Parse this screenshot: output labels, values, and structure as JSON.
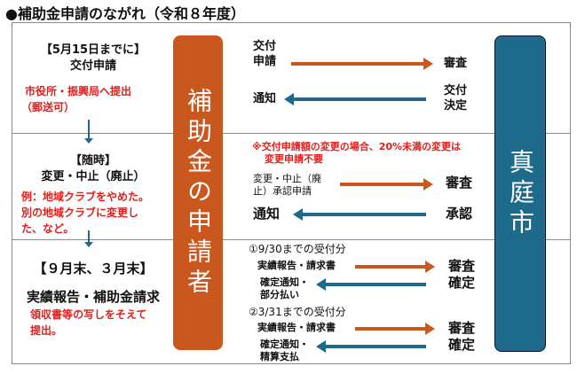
{
  "title": "●補助金申請のながれ（令和８年度）",
  "applicant": "補助金の申請者",
  "city": "真庭市",
  "colors": {
    "applicant": "#c9571e",
    "city": "#1e6a8a",
    "note": "#e0201c"
  },
  "rows": [
    {
      "heading": "【5月15日までに】",
      "subheading": "交付申請",
      "note": [
        "市役所・振興局へ提出",
        "（郵送可）"
      ],
      "flows": [
        {
          "from": "交付\n申請",
          "to": "審査",
          "dir": "right"
        },
        {
          "from": "通知",
          "to": "交付\n決定",
          "dir": "left"
        }
      ]
    },
    {
      "heading": "【随時】",
      "subheading": "変更・中止（廃止）",
      "note": [
        "例：地域クラブをやめた。",
        "別の地域クラブに変更し",
        "た、など。"
      ],
      "remark": [
        "※交付申請額の変更の場合、20%未満の変更は",
        "変更申請不要"
      ],
      "flows": [
        {
          "from": "変更・中止（廃\n止）承認申請",
          "to": "審査",
          "dir": "right"
        },
        {
          "from": "通知",
          "to": "承認",
          "dir": "left"
        }
      ]
    },
    {
      "heading": "【９月末、３月末】",
      "subheading": "実績報告・補助金請求",
      "note": [
        "領収書等の写しをそえて",
        "提出。"
      ],
      "groups": [
        {
          "label": "①9/30までの受付分",
          "send": "実績報告・請求書",
          "reply": "確定通知・\n部分払い",
          "city1": "審査",
          "city2": "確定"
        },
        {
          "label": "②3/31までの受付分",
          "send": "実績報告・請求書",
          "reply": "確定通知・\n精算支払",
          "city1": "審査",
          "city2": "確定"
        }
      ]
    }
  ]
}
